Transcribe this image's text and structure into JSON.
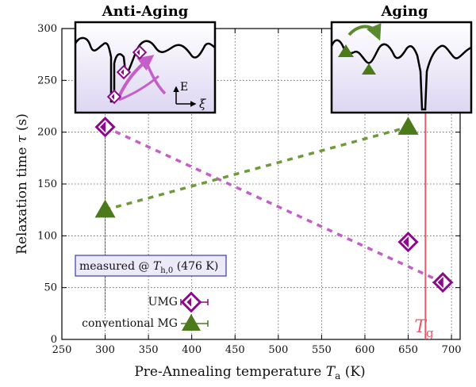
{
  "chart_data": {
    "type": "scatter",
    "xlabel": "Pre-Annealing temperature",
    "xlabel_symbol": "T",
    "xlabel_sub": "a",
    "xlabel_unit": "(K)",
    "ylabel": "Relaxation time",
    "ylabel_symbol": "τ",
    "ylabel_unit": "(s)",
    "xlim": [
      250,
      710
    ],
    "ylim": [
      0,
      300
    ],
    "xticks": [
      250,
      300,
      350,
      400,
      450,
      500,
      550,
      600,
      650,
      700
    ],
    "yticks": [
      0,
      50,
      100,
      150,
      200,
      250,
      300
    ],
    "grid": true,
    "grid_style": "dotted",
    "series": [
      {
        "name": "UMG",
        "marker": "diamond",
        "color": "#8b0a8b",
        "line_color": "#c45ec8",
        "points": [
          {
            "x": 300,
            "y": 205,
            "xerr": 5,
            "yerr": 8
          },
          {
            "x": 650,
            "y": 94,
            "xerr": 10,
            "yerr": 7
          },
          {
            "x": 690,
            "y": 55,
            "xerr": 12,
            "yerr": 5
          }
        ],
        "trend": [
          [
            300,
            205
          ],
          [
            690,
            55
          ]
        ]
      },
      {
        "name": "conventional MG",
        "marker": "triangle",
        "color": "#4a7a1a",
        "line_color": "#6f9a3a",
        "points": [
          {
            "x": 300,
            "y": 125,
            "xerr": 0,
            "yerr": 0
          },
          {
            "x": 650,
            "y": 205,
            "xerr": 0,
            "yerr": 0
          }
        ],
        "trend": [
          [
            300,
            125
          ],
          [
            650,
            205
          ]
        ]
      }
    ],
    "vline": {
      "x": 670,
      "label_symbol": "T",
      "label_sub": "g",
      "color": "#e8596a"
    },
    "annotation": {
      "text_prefix": "measured @ ",
      "symbol": "T",
      "sub": "h,0",
      "suffix": " (476 K)"
    },
    "legend_position": "bottom-left",
    "insets": [
      {
        "title": "Anti-Aging",
        "axis_up": "E",
        "axis_right": "ξ"
      },
      {
        "title": "Aging"
      }
    ]
  }
}
